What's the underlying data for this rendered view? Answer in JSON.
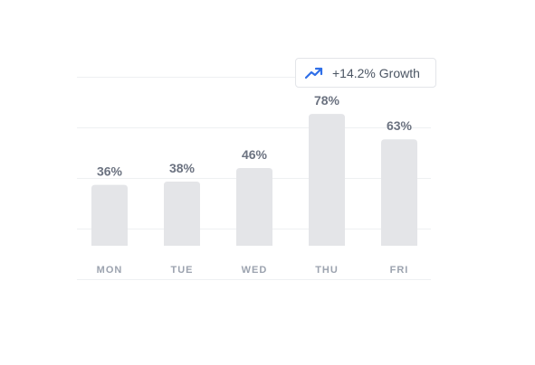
{
  "badge": {
    "icon": "trending-up-icon",
    "text": "+14.2% Growth",
    "icon_color": "#2f6fe8"
  },
  "chart_data": {
    "type": "bar",
    "categories": [
      "MON",
      "TUE",
      "WED",
      "THU",
      "FRI"
    ],
    "values": [
      36,
      38,
      46,
      78,
      63
    ],
    "data_labels": [
      "36%",
      "38%",
      "46%",
      "78%",
      "63%"
    ],
    "ylim": [
      0,
      100
    ],
    "grid": true,
    "bar_color": "#e4e5e8",
    "label_color": "#6b7280",
    "tick_color": "#9ca3af"
  }
}
